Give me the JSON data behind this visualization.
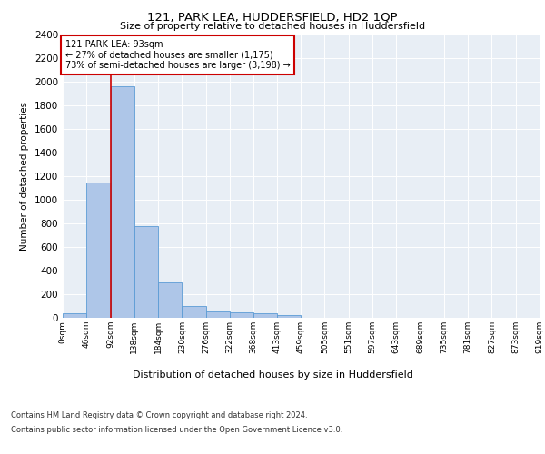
{
  "title": "121, PARK LEA, HUDDERSFIELD, HD2 1QP",
  "subtitle": "Size of property relative to detached houses in Huddersfield",
  "xlabel": "Distribution of detached houses by size in Huddersfield",
  "ylabel": "Number of detached properties",
  "footer_line1": "Contains HM Land Registry data © Crown copyright and database right 2024.",
  "footer_line2": "Contains public sector information licensed under the Open Government Licence v3.0.",
  "property_label": "121 PARK LEA: 93sqm",
  "annotation_line1": "← 27% of detached houses are smaller (1,175)",
  "annotation_line2": "73% of semi-detached houses are larger (3,198) →",
  "property_size_sqm": 93,
  "bar_edges": [
    0,
    46,
    92,
    138,
    184,
    230,
    276,
    322,
    368,
    413,
    459,
    505,
    551,
    597,
    643,
    689,
    735,
    781,
    827,
    873,
    919
  ],
  "bar_values": [
    35,
    1145,
    1960,
    775,
    300,
    100,
    50,
    45,
    38,
    25,
    0,
    0,
    0,
    0,
    0,
    0,
    0,
    0,
    0,
    0
  ],
  "bar_color": "#aec6e8",
  "bar_edge_color": "#5b9bd5",
  "vline_color": "#cc0000",
  "vline_x": 93,
  "annotation_box_color": "#cc0000",
  "background_color": "#e8eef5",
  "ylim": [
    0,
    2400
  ],
  "yticks": [
    0,
    200,
    400,
    600,
    800,
    1000,
    1200,
    1400,
    1600,
    1800,
    2000,
    2200,
    2400
  ],
  "tick_labels": [
    "0sqm",
    "46sqm",
    "92sqm",
    "138sqm",
    "184sqm",
    "230sqm",
    "276sqm",
    "322sqm",
    "368sqm",
    "413sqm",
    "459sqm",
    "505sqm",
    "551sqm",
    "597sqm",
    "643sqm",
    "689sqm",
    "735sqm",
    "781sqm",
    "827sqm",
    "873sqm",
    "919sqm"
  ]
}
